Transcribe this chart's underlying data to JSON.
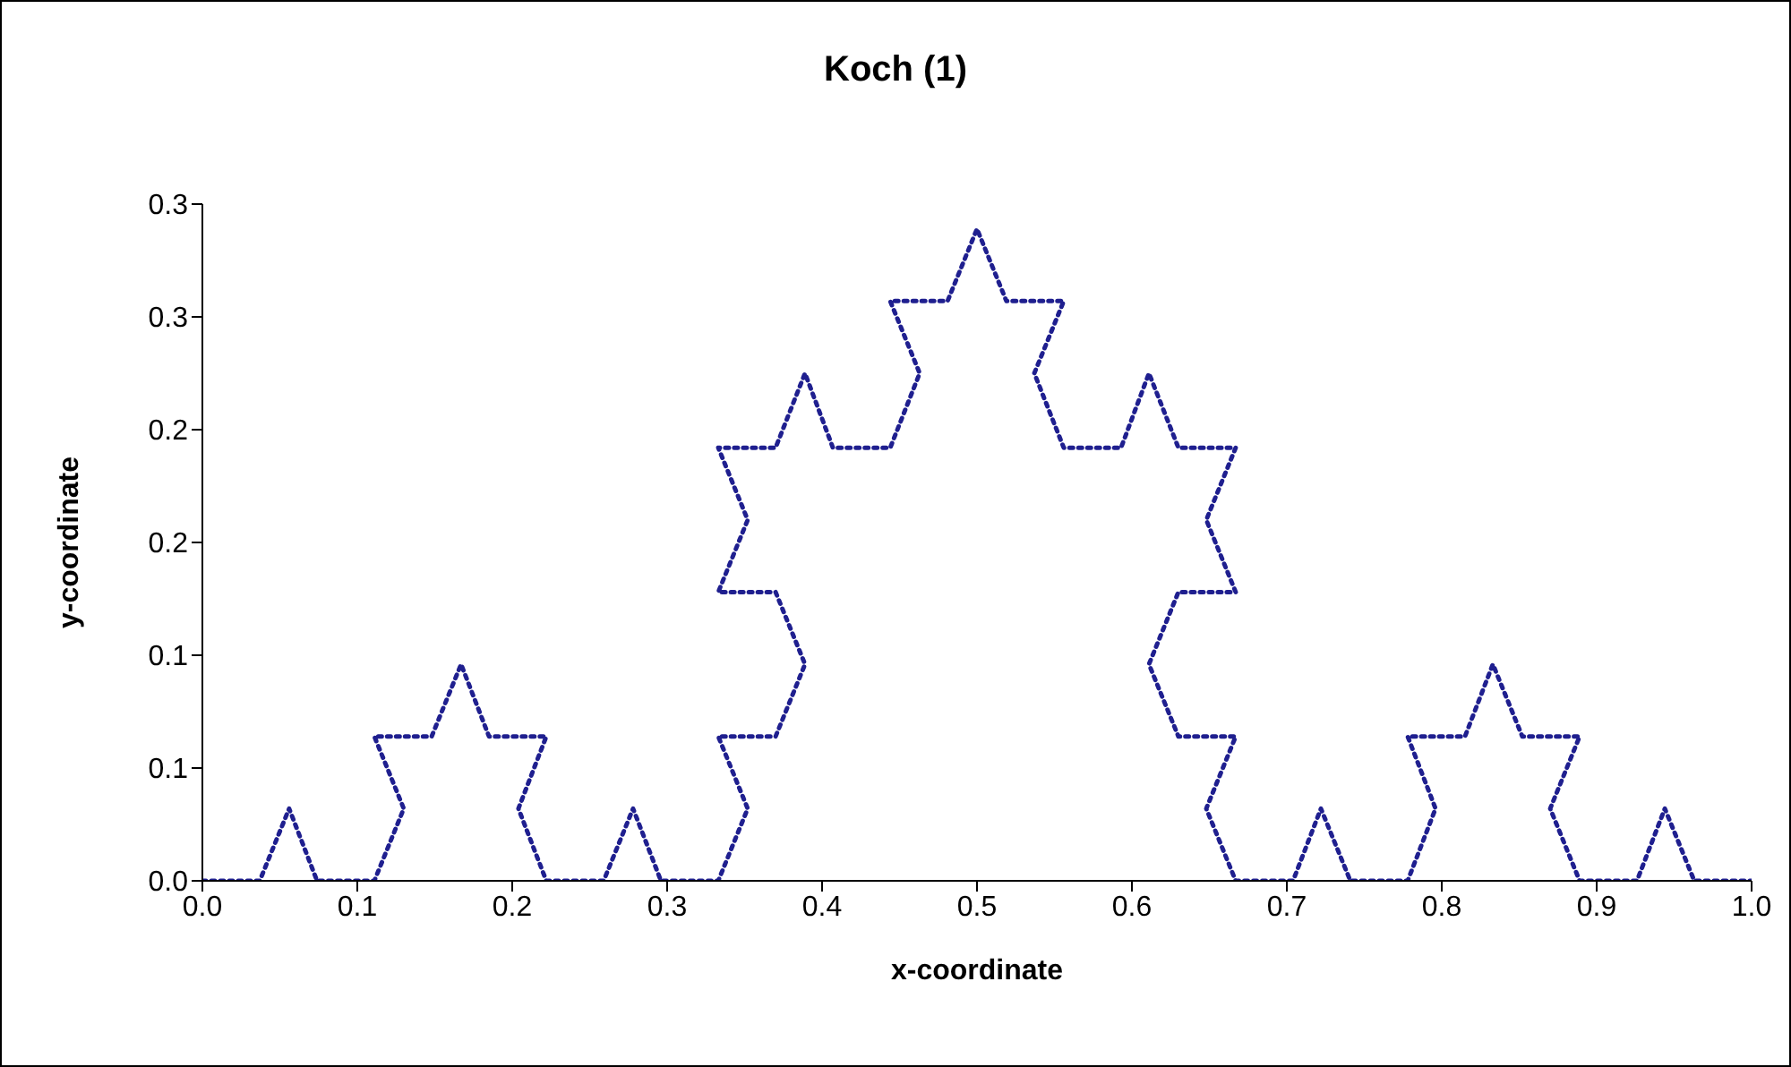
{
  "chart_data": {
    "type": "line",
    "title": "Koch (1)",
    "xlabel": "x-coordinate",
    "ylabel": "y-coordinate",
    "line_style": "dotted",
    "marker": "none",
    "grid": false,
    "legend": false,
    "xlim": [
      0,
      1
    ],
    "xticks": [
      {
        "value": 0,
        "label": "0.0"
      },
      0.1,
      0.2,
      0.3,
      0.4,
      0.5,
      0.6,
      0.7,
      0.8,
      0.9,
      {
        "value": 1,
        "label": "1.0"
      }
    ],
    "ylim": [
      0,
      0.3
    ],
    "yticks": [
      {
        "value": 0,
        "label": "0.0"
      },
      {
        "value": 0.05,
        "label": "0.1"
      },
      0.1,
      {
        "value": 0.15,
        "label": "0.2"
      },
      0.2,
      {
        "value": 0.25,
        "label": "0.3"
      },
      0.3
    ],
    "series": [
      {
        "color": "#1f1f8f",
        "x": [
          0,
          0.037,
          0.056,
          0.074,
          0.111,
          0.13,
          0.111,
          0.148,
          0.167,
          0.185,
          0.222,
          0.204,
          0.222,
          0.259,
          0.278,
          0.296,
          0.333,
          0.352,
          0.333,
          0.37,
          0.389,
          0.37,
          0.333,
          0.352,
          0.333,
          0.37,
          0.389,
          0.407,
          0.444,
          0.463,
          0.444,
          0.481,
          0.5,
          0.519,
          0.556,
          0.537,
          0.556,
          0.593,
          0.611,
          0.63,
          0.667,
          0.648,
          0.667,
          0.63,
          0.611,
          0.63,
          0.667,
          0.648,
          0.667,
          0.704,
          0.722,
          0.741,
          0.778,
          0.796,
          0.778,
          0.815,
          0.833,
          0.852,
          0.889,
          0.87,
          0.889,
          0.926,
          0.944,
          0.963,
          1
        ],
        "values": [
          0,
          0,
          0.032,
          0,
          0,
          0.032,
          0.064,
          0.064,
          0.096,
          0.064,
          0.064,
          0.032,
          0,
          0,
          0.032,
          0,
          0,
          0.032,
          0.064,
          0.064,
          0.096,
          0.128,
          0.128,
          0.16,
          0.192,
          0.192,
          0.225,
          0.192,
          0.192,
          0.225,
          0.257,
          0.257,
          0.289,
          0.257,
          0.257,
          0.225,
          0.192,
          0.192,
          0.225,
          0.192,
          0.192,
          0.16,
          0.128,
          0.128,
          0.096,
          0.064,
          0.064,
          0.032,
          0,
          0,
          0.032,
          0,
          0,
          0.032,
          0.064,
          0.064,
          0.096,
          0.064,
          0.064,
          0.032,
          0,
          0,
          0.032,
          0,
          0
        ]
      }
    ]
  }
}
